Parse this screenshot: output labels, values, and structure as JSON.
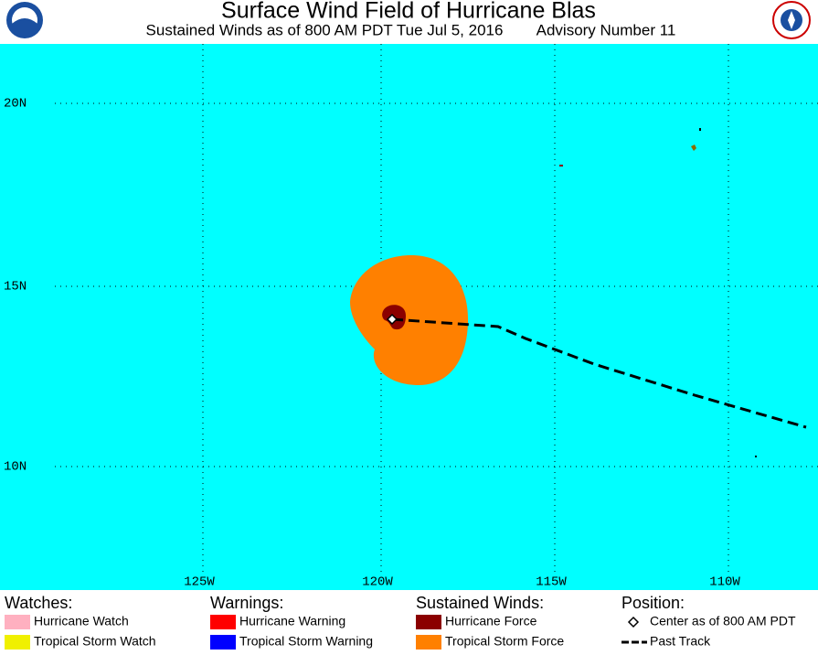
{
  "header": {
    "title": "Surface Wind Field of Hurricane Blas",
    "subtitle": "Sustained Winds as of 800 AM PDT Tue Jul 5, 2016",
    "advisory": "Advisory Number 11"
  },
  "map": {
    "lat_labels": [
      "20N",
      "15N",
      "10N"
    ],
    "lon_labels": [
      "125W",
      "120W",
      "115W",
      "110W"
    ]
  },
  "legend": {
    "watches": {
      "heading": "Watches:",
      "items": [
        "Hurricane Watch",
        "Tropical Storm Watch"
      ]
    },
    "warnings": {
      "heading": "Warnings:",
      "items": [
        "Hurricane Warning",
        "Tropical Storm Warning"
      ]
    },
    "winds": {
      "heading": "Sustained Winds:",
      "items": [
        "Hurricane Force",
        "Tropical Storm Force"
      ]
    },
    "position": {
      "heading": "Position:",
      "items": [
        "Center as of 800 AM PDT",
        "Past Track"
      ]
    }
  }
}
